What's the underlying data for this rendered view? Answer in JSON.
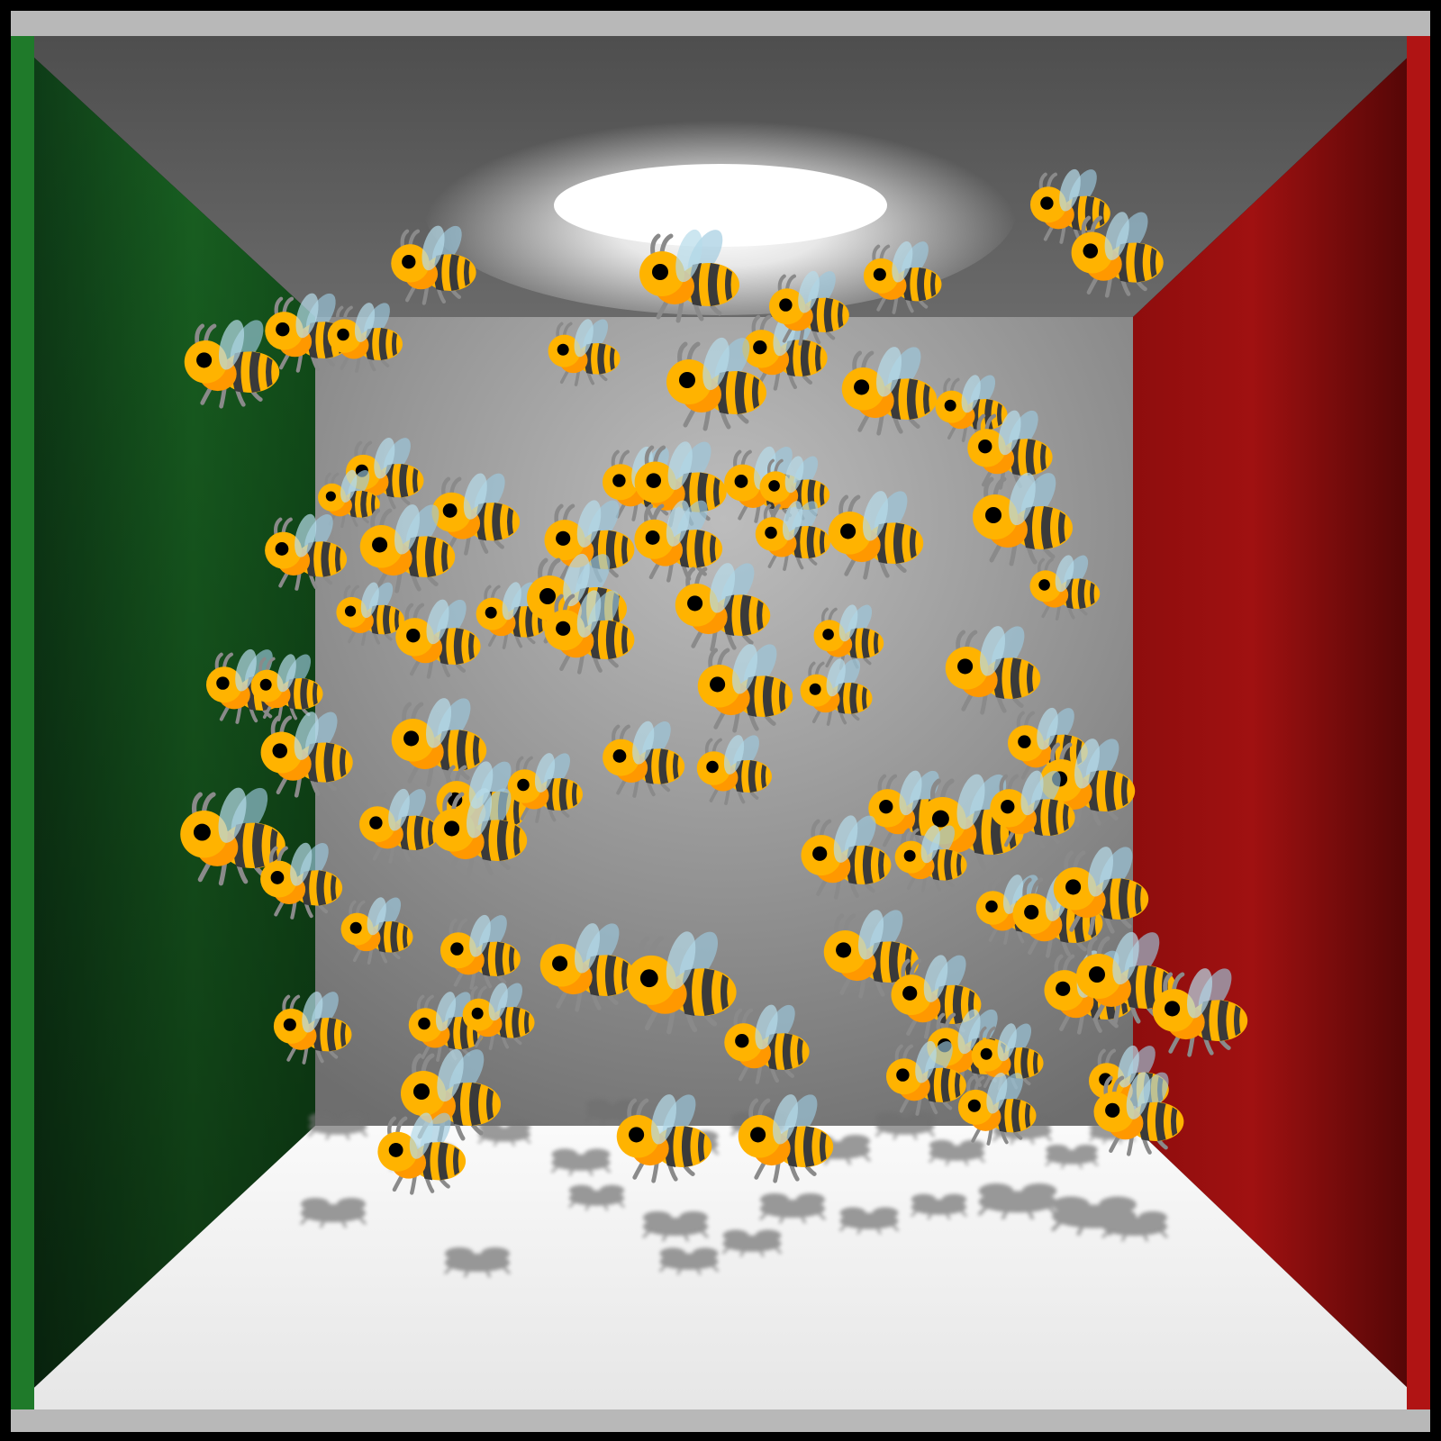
{
  "scene": {
    "subject": "bee swarm",
    "icon": "bee-icon",
    "colors": {
      "frame": "#000000",
      "trim": "#b8b8b8",
      "left_wall": "#1c6e26",
      "left_wall_dark": "#0b3315",
      "right_wall": "#9a0f0f",
      "right_wall_dark": "#3e0404",
      "back_wall": "#a8a8a8",
      "ceiling": "#585858",
      "floor": "#f4f4f4",
      "light": "#ffffff",
      "bee_body": "#ffb300",
      "bee_head": "#ff9800",
      "bee_stripe": "#3a3a3a",
      "bee_wing": "#9cc9de",
      "bee_leg": "#8a8a8a",
      "bee_eye": "#000000"
    }
  }
}
